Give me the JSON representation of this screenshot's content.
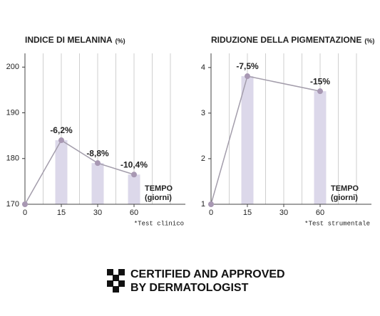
{
  "chart_data": [
    {
      "type": "bar-line",
      "title": "INDICE DI MELANINA",
      "unit": "(%)",
      "categories": [
        "0",
        "15",
        "30",
        "60"
      ],
      "bar_values": [
        null,
        184,
        179,
        176.5
      ],
      "values": [
        170,
        184,
        179,
        176.5
      ],
      "value_labels": [
        null,
        "-6,2%",
        "-8,8%",
        "-10,4%"
      ],
      "ylim": [
        170,
        203
      ],
      "yticks": [
        170,
        180,
        190,
        200
      ],
      "xlabel": "TEMPO",
      "xlabel_sub": "(giorni)",
      "note": "*Test clinico",
      "bar_color": "#dcd8ea",
      "line_color": "#a39dab",
      "point_color": "#a898b3",
      "connect_gaps": true
    },
    {
      "type": "bar-line",
      "title": "RIDUZIONE DELLA PIGMENTAZIONE",
      "unit": "(%)",
      "categories": [
        "0",
        "15",
        "30",
        "60"
      ],
      "bar_values": [
        null,
        3.81,
        null,
        3.48
      ],
      "values": [
        1,
        3.81,
        null,
        3.48
      ],
      "value_labels": [
        null,
        "-7,5%",
        null,
        "-15%"
      ],
      "ylim": [
        1,
        4.31
      ],
      "yticks": [
        1,
        2,
        3,
        4
      ],
      "xlabel": "TEMPO",
      "xlabel_sub": "(giorni)",
      "note": "*Test strumentale",
      "bar_color": "#dcd8ea",
      "line_color": "#a39dab",
      "point_color": "#a898b3",
      "connect_gaps": true
    }
  ],
  "logo": {
    "lines": [
      "CERTIFIED AND APPROVED",
      "BY DERMATOLOGIST"
    ]
  }
}
